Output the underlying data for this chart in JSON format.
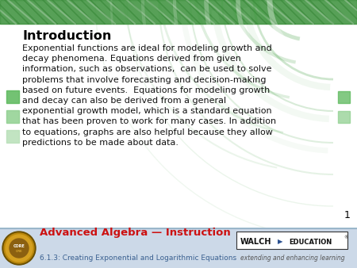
{
  "title": "Introduction",
  "body_text": "Exponential functions are ideal for modeling growth and\ndecay phenomena. Equations derived from given\ninformation, such as observations,  can be used to solve\nproblems that involve forecasting and decision-making\nbased on future events.  Equations for modeling growth\nand decay can also be derived from a general\nexponential growth model, which is a standard equation\nthat has been proven to work for many cases. In addition\nto equations, graphs are also helpful because they allow\npredictions to be made about data.",
  "slide_number": "1",
  "footer_title": "Advanced Algebra — Instruction",
  "footer_subtitle": "6.1.3: Creating Exponential and Logarithmic Equations",
  "footer_right_top": "WALCH   EDUCATION",
  "footer_right_sub": "extending and enhancing learning",
  "bg_color": "#ffffff",
  "footer_bg_color": "#ccd9e8",
  "footer_title_color": "#cc1111",
  "footer_subtitle_color": "#3a6090",
  "title_color": "#000000",
  "body_color": "#111111",
  "slide_number_color": "#000000",
  "swirl_green": "#3d9e3d",
  "swirl_light": "#90c890",
  "square_left_colors": [
    "#5ab85a",
    "#90d090",
    "#b8e0b8"
  ],
  "square_right_colors": [
    "#5ab85a",
    "#90d090"
  ],
  "title_fontsize": 11.5,
  "body_fontsize": 8.0,
  "footer_fontsize": 9.5,
  "footer_sub_fontsize": 6.5,
  "walch_fontsize": 7.0,
  "walch_sub_fontsize": 5.5
}
